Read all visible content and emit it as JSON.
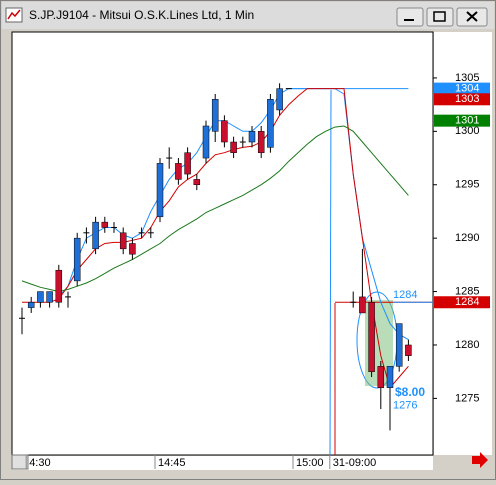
{
  "window": {
    "title": "S.JP.J9104 - Mitsui O.S.K.Lines Ltd, 1 Min"
  },
  "chart_data": {
    "type": "candlestick",
    "categories": [
      null,
      "4:30",
      null,
      null,
      null,
      null,
      null,
      null,
      null,
      null,
      null,
      null,
      null,
      null,
      null,
      "14:45",
      null,
      null,
      null,
      null,
      null,
      null,
      null,
      null,
      null,
      null,
      null,
      null,
      null,
      null,
      "15:00",
      null,
      null,
      null,
      "31-09:00",
      null,
      null,
      null,
      null,
      null,
      null,
      null,
      null
    ],
    "open": [
      1282.5,
      1283.5,
      1284,
      1284,
      1287,
      1284.5,
      1286,
      1290.5,
      1289,
      1291.5,
      1291,
      1290.5,
      1289.5,
      1290.5,
      1290.5,
      1292,
      1297.5,
      1297,
      1298,
      1295.5,
      1297.5,
      1300,
      1301,
      1299,
      1299,
      1299,
      1300,
      1298.5,
      1302,
      1304,
      null,
      null,
      null,
      null,
      null,
      null,
      1284,
      1284.5,
      1284,
      1278,
      1276,
      1278,
      1280
    ],
    "high": [
      1283.5,
      1284.5,
      1285,
      1285,
      1287.5,
      1285,
      1290.5,
      1291,
      1292,
      1292,
      1291.5,
      1291,
      1290,
      1291,
      1291,
      1297.5,
      1298.5,
      1297.5,
      1298.5,
      1296,
      1301,
      1303.5,
      1301.5,
      1299.5,
      1299.5,
      1300.5,
      1300.5,
      1303.5,
      1304.5,
      1304,
      null,
      null,
      null,
      null,
      null,
      null,
      1285,
      1289,
      1284.5,
      1278.5,
      1278,
      1282,
      1280.5
    ],
    "low": [
      1281,
      1283,
      1283.5,
      1283.5,
      1283.5,
      1283.5,
      1285.5,
      1289.5,
      1288.5,
      1290.5,
      1290.5,
      1288.5,
      1288,
      1290,
      1290,
      1291.5,
      1296.5,
      1295,
      1295.5,
      1294.5,
      1297,
      1299,
      1298.5,
      1297.5,
      1298.5,
      1298.5,
      1297.5,
      1298,
      1301.5,
      1304,
      null,
      null,
      null,
      null,
      null,
      null,
      1283.5,
      1283,
      1277,
      1274,
      1272,
      1277.5,
      1278.5
    ],
    "close": [
      1282.5,
      1284,
      1285,
      1285,
      1284,
      1284.5,
      1290,
      1290.5,
      1291.5,
      1291,
      1291,
      1289,
      1288.5,
      1290.5,
      1290.5,
      1297,
      1297.5,
      1295.5,
      1296,
      1295,
      1300.5,
      1303,
      1299,
      1298,
      1299,
      1300,
      1298,
      1303,
      1304,
      1304,
      null,
      null,
      null,
      null,
      null,
      null,
      1284,
      1283,
      1277.5,
      1276,
      1278,
      1282,
      1279
    ],
    "up_color": "#1f6fd8",
    "down_color": "#c8102e",
    "flat_color": "#000000",
    "series": [
      {
        "color": "#1e90ff",
        "values": [
          null,
          null,
          null,
          null,
          1284.5,
          1285.5,
          1288,
          1290,
          1290.5,
          1291,
          1291,
          1290.3,
          1290,
          1290.5,
          1292.5,
          1294,
          1295.5,
          1296.5,
          1297,
          1298,
          1299.5,
          1301,
          1301,
          1300.5,
          1300,
          1300,
          1300.8,
          1302,
          1303.5,
          1304,
          1304,
          1304,
          1304,
          1304,
          1304,
          1303.5,
          1296,
          1290,
          1287,
          1284,
          1282,
          1281,
          1280.5
        ]
      },
      {
        "color": "#d40000",
        "values": [
          1284,
          1284,
          1284,
          1284,
          1284.3,
          1285.5,
          1287,
          1288,
          1289,
          1289.5,
          1289.6,
          1289.6,
          1289.8,
          1290,
          1291,
          1292.5,
          1293.5,
          1294.8,
          1295.5,
          1296,
          1297,
          1297.8,
          1298,
          1298.3,
          1298.5,
          1298.6,
          1299,
          1300,
          1301.5,
          1302.5,
          1303.3,
          1304,
          1304,
          1304,
          1304,
          1304,
          1296,
          1290,
          1284,
          1279,
          1276,
          1277,
          1278
        ]
      },
      {
        "color": "#1a7a1a",
        "values": [
          1286,
          1285.7,
          1285.4,
          1285.2,
          1285,
          1285.2,
          1285.5,
          1285.8,
          1286.2,
          1286.7,
          1287.2,
          1287.6,
          1288,
          1288.5,
          1289,
          1289.5,
          1290.2,
          1290.8,
          1291.3,
          1291.8,
          1292.4,
          1292.8,
          1293.2,
          1293.6,
          1294,
          1294.5,
          1295,
          1295.6,
          1296.3,
          1297.2,
          1298,
          1298.8,
          1299.5,
          1300,
          1300.4,
          1300.5,
          1300,
          1299,
          1298,
          1297,
          1296,
          1295,
          1294
        ]
      }
    ],
    "ylim": [
      1269.7,
      1309.3
    ],
    "yticks": [
      1275,
      1280,
      1285,
      1290,
      1295,
      1300,
      1305
    ],
    "hlines": [
      {
        "value": 1304,
        "color": "#1e90ff"
      },
      {
        "value": 1284,
        "color": "#d40000"
      }
    ],
    "price_flags": [
      {
        "value": 1304,
        "color": "#1e90ff"
      },
      {
        "value": 1303,
        "color": "#d40000"
      },
      {
        "value": 1301,
        "color": "#008000"
      },
      {
        "value": 1284,
        "color": "#d40000"
      }
    ],
    "measure": {
      "high": 1284,
      "low": 1276,
      "change_label": "$8.00",
      "color": "#1e90ff"
    }
  }
}
